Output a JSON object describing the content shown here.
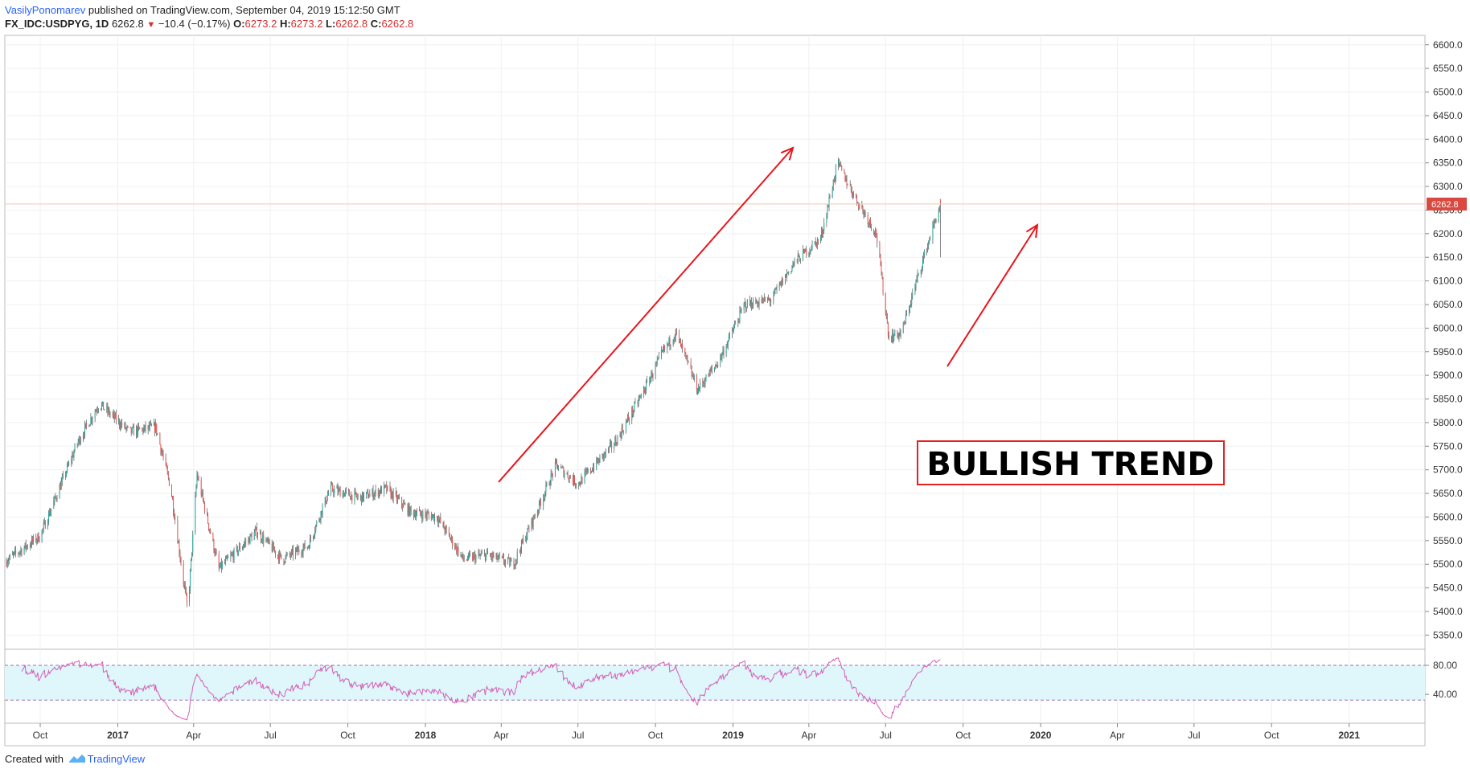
{
  "header": {
    "author": "VasilyPonomarev",
    "published": "published on TradingView.com, September 04, 2019 15:12:50 GMT",
    "symbol": "FX_IDC:USDPYG, 1D",
    "last": "6262.8",
    "change": "−10.4 (−0.17%)",
    "o_label": "O:",
    "o": "6273.2",
    "h_label": "H:",
    "h": "6273.2",
    "l_label": "L:",
    "l": "6262.8",
    "c_label": "C:",
    "c": "6262.8"
  },
  "footer": {
    "created": "Created with",
    "brand": "TradingView"
  },
  "annotation": {
    "text": "BULLISH TREND"
  },
  "colors": {
    "up": "#26a69a",
    "down": "#ef5350",
    "arrow": "#e8141b",
    "rsi": "#d35fb7",
    "rsi_band": "#dff6fb",
    "price_line": "#f0c8b0",
    "price_tag": "#d9493f"
  },
  "chart_data": [
    {
      "type": "candlestick",
      "symbol": "FX_IDC:USDPYG",
      "interval": "1D",
      "x_ticks": [
        "Oct",
        "2017",
        "Apr",
        "Jul",
        "Oct",
        "2018",
        "Apr",
        "Jul",
        "Oct",
        "2019",
        "Apr",
        "Jul",
        "Oct",
        "2020",
        "Apr",
        "Jul",
        "Oct",
        "2021"
      ],
      "y_ticks": [
        "6600.0",
        "6550.0",
        "6500.0",
        "6450.0",
        "6400.0",
        "6350.0",
        "6300.0",
        "6250.0",
        "6200.0",
        "6150.0",
        "6100.0",
        "6050.0",
        "6000.0",
        "5950.0",
        "5900.0",
        "5850.0",
        "5800.0",
        "5750.0",
        "5700.0",
        "5650.0",
        "5600.0",
        "5550.0",
        "5500.0",
        "5450.0",
        "5400.0",
        "5350.0"
      ],
      "ylim": [
        5320,
        6620
      ],
      "last_price": 6262.8,
      "last_price_label": "6262.8",
      "close_series_approx": {
        "dates": [
          "2016-08-20",
          "2016-10-01",
          "2016-11-15",
          "2016-12-10",
          "2017-01-15",
          "2017-02-15",
          "2017-03-05",
          "2017-03-25",
          "2017-04-05",
          "2017-05-01",
          "2017-06-15",
          "2017-07-15",
          "2017-08-15",
          "2017-09-10",
          "2017-10-15",
          "2017-11-15",
          "2017-12-15",
          "2018-01-15",
          "2018-02-15",
          "2018-03-15",
          "2018-04-15",
          "2018-05-15",
          "2018-06-05",
          "2018-07-01",
          "2018-08-15",
          "2018-09-15",
          "2018-10-10",
          "2018-10-25",
          "2018-11-20",
          "2018-12-15",
          "2019-01-15",
          "2019-02-15",
          "2019-03-15",
          "2019-04-15",
          "2019-05-05",
          "2019-05-25",
          "2019-06-20",
          "2019-07-05",
          "2019-07-20",
          "2019-08-10",
          "2019-09-04"
        ],
        "values": [
          5505,
          5560,
          5760,
          5840,
          5780,
          5790,
          5660,
          5400,
          5690,
          5490,
          5570,
          5510,
          5540,
          5660,
          5640,
          5660,
          5610,
          5600,
          5510,
          5520,
          5500,
          5620,
          5710,
          5670,
          5760,
          5860,
          5950,
          5990,
          5870,
          5930,
          6050,
          6060,
          6140,
          6190,
          6350,
          6280,
          6200,
          5980,
          5990,
          6120,
          6262.8
        ]
      }
    },
    {
      "type": "line",
      "indicator": "RSI",
      "y_ticks": [
        "80.00",
        "40.00"
      ],
      "bands": [
        30,
        70
      ]
    }
  ]
}
